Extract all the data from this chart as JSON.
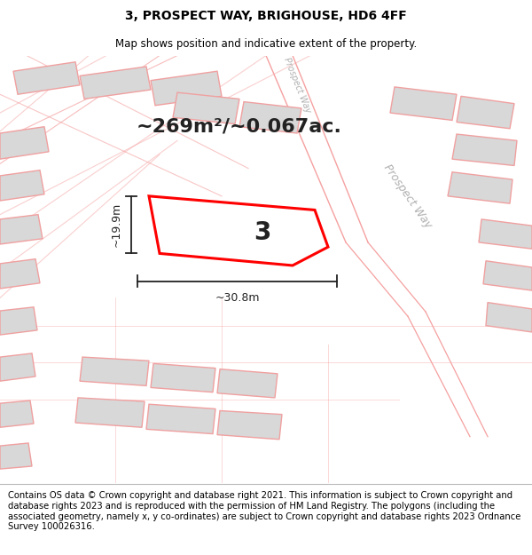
{
  "title": "3, PROSPECT WAY, BRIGHOUSE, HD6 4FF",
  "subtitle": "Map shows position and indicative extent of the property.",
  "area_label": "~269m²/~0.067ac.",
  "plot_number": "3",
  "width_label": "~30.8m",
  "height_label": "~19.9m",
  "footer_text": "Contains OS data © Crown copyright and database right 2021. This information is subject to Crown copyright and database rights 2023 and is reproduced with the permission of HM Land Registry. The polygons (including the associated geometry, namely x, y co-ordinates) are subject to Crown copyright and database rights 2023 Ordnance Survey 100026316.",
  "title_fontsize": 10,
  "subtitle_fontsize": 8.5,
  "area_fontsize": 16,
  "plot_number_fontsize": 20,
  "dim_fontsize": 9,
  "footer_fontsize": 7.2,
  "building_fill": "#d8d8d8",
  "building_edge": "#f0a0a0",
  "road_color": "#f5a0a0",
  "plot_edge": "#ff0000",
  "street_color": "#b0b0b0"
}
